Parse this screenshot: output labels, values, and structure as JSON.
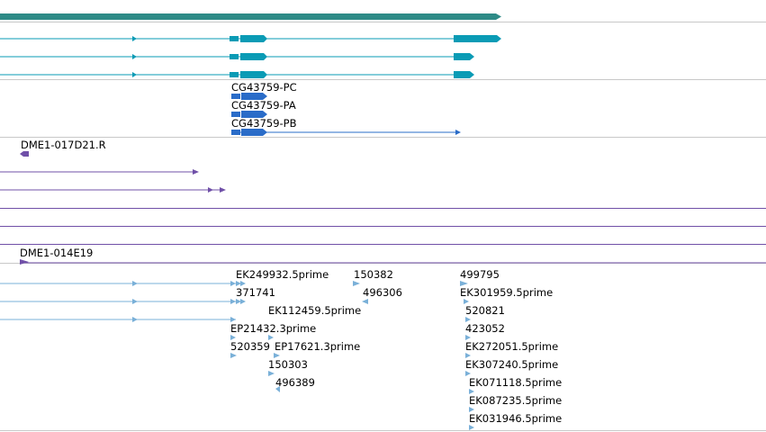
{
  "colors": {
    "gene_span": "#2e8b87",
    "transcript": "#0a9bb5",
    "cds": "#2a6cc8",
    "clone": "#7050a8",
    "est": "#7ab0d8",
    "separator": "#c8c8c8",
    "label": "#000000"
  },
  "transcripts": {
    "labels": [
      "CG43759-PC",
      "CG43759-PA",
      "CG43759-PB"
    ]
  },
  "clones": {
    "labels": [
      "DME1-017D21.R",
      "DME1-014E19"
    ]
  },
  "ests": {
    "labels": [
      "EK249932.5prime",
      "150382",
      "499795",
      "371741",
      "496306",
      "EK301959.5prime",
      "EK112459.5prime",
      "520821",
      "EP21432.3prime",
      "423052",
      "520359",
      "EP17621.3prime",
      "EK272051.5prime",
      "150303",
      "EK307240.5prime",
      "496389",
      "EK071118.5prime",
      "EK087235.5prime",
      "EK031946.5prime"
    ]
  }
}
